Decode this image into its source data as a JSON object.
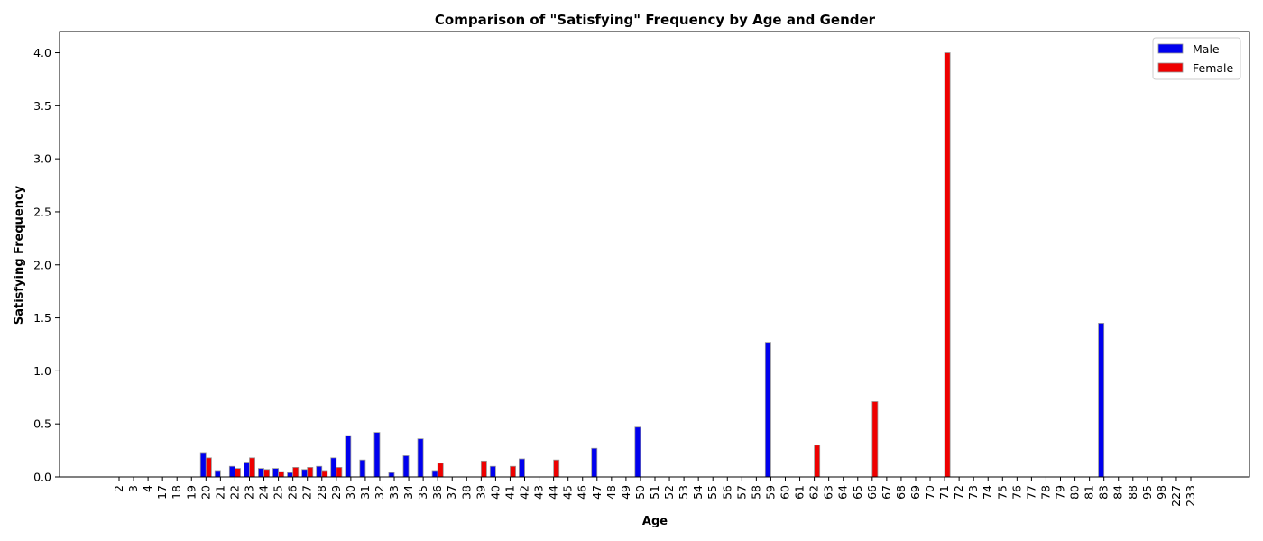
{
  "chart_data": {
    "type": "bar",
    "title": "Comparison of \"Satisfying\" Frequency by Age and Gender",
    "xlabel": "Age",
    "ylabel": "Satisfying Frequency",
    "ylim": [
      0,
      4.2
    ],
    "yticks": [
      "0.0",
      "0.5",
      "1.0",
      "1.5",
      "2.0",
      "2.5",
      "3.0",
      "3.5",
      "4.0"
    ],
    "grid": false,
    "legend_position": "top-right",
    "categories": [
      "2",
      "3",
      "4",
      "17",
      "18",
      "19",
      "20",
      "21",
      "22",
      "23",
      "24",
      "25",
      "26",
      "27",
      "28",
      "29",
      "30",
      "31",
      "32",
      "33",
      "34",
      "35",
      "36",
      "37",
      "38",
      "39",
      "40",
      "41",
      "42",
      "43",
      "44",
      "45",
      "46",
      "47",
      "48",
      "49",
      "50",
      "51",
      "52",
      "53",
      "54",
      "55",
      "56",
      "57",
      "58",
      "59",
      "60",
      "61",
      "62",
      "63",
      "64",
      "65",
      "66",
      "67",
      "68",
      "69",
      "70",
      "71",
      "72",
      "73",
      "74",
      "75",
      "76",
      "77",
      "78",
      "79",
      "80",
      "81",
      "83",
      "84",
      "88",
      "95",
      "98",
      "227",
      "233"
    ],
    "series": [
      {
        "name": "Male",
        "color": "#0000ee",
        "values": [
          0,
          0,
          0,
          0,
          0,
          0,
          0.23,
          0.06,
          0.1,
          0.14,
          0.08,
          0.08,
          0.04,
          0.07,
          0.1,
          0.18,
          0.39,
          0.16,
          0.42,
          0.04,
          0.2,
          0.36,
          0.06,
          0,
          0,
          0,
          0.1,
          0,
          0.17,
          0,
          0,
          0,
          0,
          0.27,
          0,
          0,
          0.47,
          0,
          0,
          0,
          0,
          0,
          0,
          0,
          0,
          1.27,
          0,
          0,
          0,
          0,
          0,
          0,
          0,
          0,
          0,
          0,
          0,
          0,
          0,
          0,
          0,
          0,
          0,
          0,
          0,
          0,
          0,
          0,
          1.45,
          0,
          0,
          0,
          0,
          0,
          0
        ]
      },
      {
        "name": "Female",
        "color": "#ee0000",
        "values": [
          0,
          0,
          0,
          0,
          0,
          0,
          0.18,
          0,
          0.08,
          0.18,
          0.07,
          0.05,
          0.09,
          0.09,
          0.06,
          0.09,
          0,
          0,
          0,
          0,
          0,
          0,
          0.13,
          0,
          0,
          0.15,
          0,
          0.1,
          0,
          0,
          0.16,
          0,
          0,
          0,
          0,
          0,
          0,
          0,
          0,
          0,
          0,
          0,
          0,
          0,
          0,
          0,
          0,
          0,
          0.3,
          0,
          0,
          0,
          0.71,
          0,
          0,
          0,
          0,
          4.0,
          0,
          0,
          0,
          0,
          0,
          0,
          0,
          0,
          0,
          0,
          0,
          0,
          0,
          0,
          0,
          0,
          0
        ]
      }
    ]
  }
}
